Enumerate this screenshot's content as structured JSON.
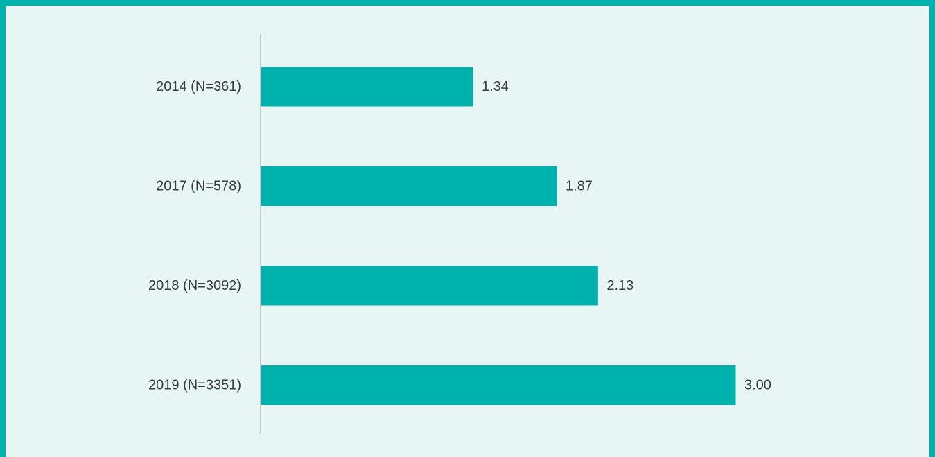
{
  "colors": {
    "frame": "#00B2AD",
    "background": "#E8F5F5",
    "bar": "#00B2AD",
    "axis": "#9a9a9a",
    "text": "#3c3c3c"
  },
  "chart_data": {
    "type": "bar",
    "orientation": "horizontal",
    "categories": [
      "2014 (N=361)",
      "2017 (N=578)",
      "2018 (N=3092)",
      "2019 (N=3351)"
    ],
    "values": [
      1.34,
      1.87,
      2.13,
      3.0
    ],
    "value_labels": [
      "1.34",
      "1.87",
      "2.13",
      "3.00"
    ],
    "xlim": [
      0,
      3.0
    ],
    "grid": false,
    "legend": "none"
  }
}
